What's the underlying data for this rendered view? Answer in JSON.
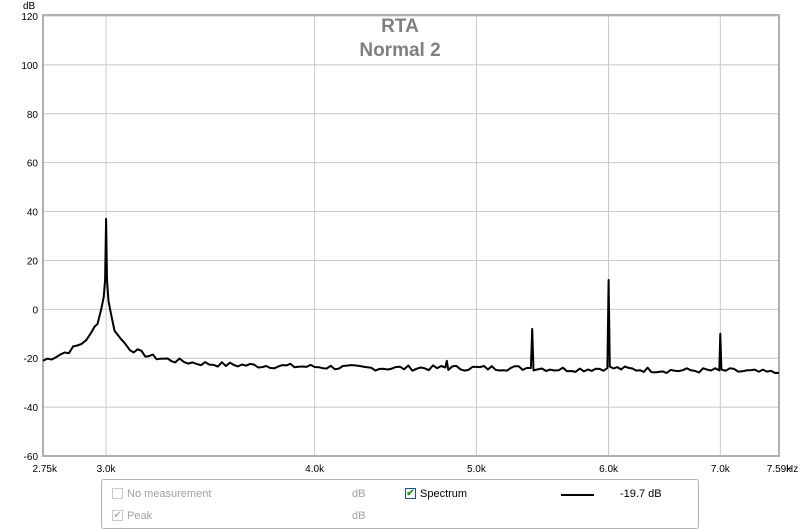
{
  "chart_data": {
    "type": "line",
    "title": "RTA",
    "subtitle": "Normal 2",
    "ylabel": "dB",
    "xlabel": "Hz",
    "xscale": "log",
    "xlim": [
      2750,
      7590
    ],
    "ylim": [
      -60,
      120
    ],
    "grid": true,
    "x_tick_values": [
      2750,
      3000,
      4000,
      5000,
      6000,
      7000,
      7590
    ],
    "x_tick_labels": [
      "2.75k",
      "3.0k",
      "4.0k",
      "5.0k",
      "6.0k",
      "7.0k",
      "7.59k"
    ],
    "y_ticks": [
      120,
      100,
      80,
      60,
      40,
      20,
      0,
      -20,
      -40,
      -60
    ],
    "y_tick_labels": [
      "120",
      "100",
      "80",
      "60",
      "40",
      "20",
      "0",
      "-20",
      "-40",
      "-60"
    ],
    "series": [
      {
        "name": "Spectrum",
        "color": "#000000",
        "x": [
          2750,
          2800,
          2850,
          2900,
          2940,
          2965,
          2980,
          2990,
          2996,
          3000,
          3004,
          3010,
          3020,
          3035,
          3060,
          3100,
          3150,
          3200,
          3300,
          3400,
          3500,
          3700,
          4000,
          4300,
          4500,
          4790,
          4800,
          4810,
          5000,
          5300,
          5390,
          5400,
          5410,
          5600,
          5800,
          5990,
          6000,
          6010,
          6200,
          6500,
          6990,
          7000,
          7010,
          7300,
          7590
        ],
        "y": [
          -21,
          -19,
          -17,
          -14,
          -10,
          -5,
          0,
          5,
          12,
          37,
          12,
          4,
          -2,
          -8,
          -12,
          -16,
          -18,
          -19.5,
          -21,
          -22,
          -22.5,
          -23,
          -23.5,
          -24,
          -24,
          -24,
          -21,
          -24,
          -24,
          -24,
          -24,
          -8,
          -24,
          -24.5,
          -24.5,
          -24,
          12,
          -24,
          -24.5,
          -25,
          -25,
          -10,
          -25,
          -25.5,
          -26
        ]
      }
    ]
  },
  "legend": {
    "row1": {
      "label": "No measurement",
      "unit": "dB",
      "checked": false
    },
    "row2": {
      "label": "Peak",
      "unit": "dB",
      "checked": true
    },
    "spectrum": {
      "label": "Spectrum",
      "checked": true,
      "value": "-19.7 dB"
    }
  }
}
